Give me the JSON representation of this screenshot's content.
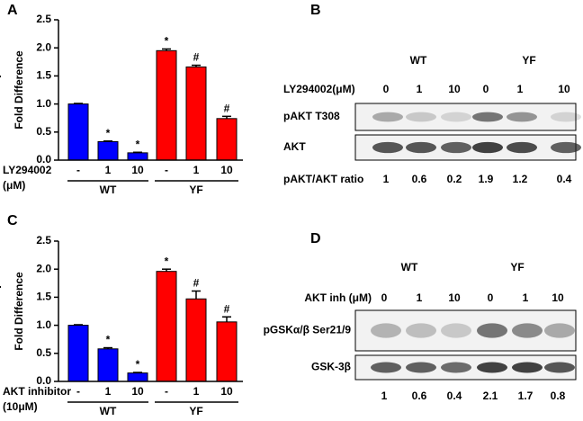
{
  "panel_labels": [
    "A",
    "B",
    "C",
    "D"
  ],
  "chart_data": [
    {
      "type": "bar",
      "y_label": "Fold Difference",
      "categories": [
        "-",
        "1",
        "10",
        "-",
        "1",
        "10"
      ],
      "values": [
        1.0,
        0.33,
        0.13,
        1.95,
        1.66,
        0.74
      ],
      "errors": [
        0.01,
        0.01,
        0.01,
        0.03,
        0.03,
        0.04
      ],
      "colors": [
        "#0000ff",
        "#0000ff",
        "#0000ff",
        "#ff0000",
        "#ff0000",
        "#ff0000"
      ],
      "annotations": [
        null,
        "*",
        "*",
        "*",
        "#",
        "#"
      ],
      "groups": [
        "WT",
        "YF"
      ],
      "treatment_label": [
        "LY294002",
        "(μM)"
      ],
      "ylim": [
        0,
        2.5
      ],
      "yticks": [
        {
          "value": 0,
          "label": "0.0"
        },
        {
          "value": 0.5,
          "label": "0.5"
        },
        {
          "value": 1,
          "label": "1.0"
        },
        {
          "value": 1.5,
          "label": "1.5"
        },
        {
          "value": 2,
          "label": "2.0"
        },
        {
          "value": 2.5,
          "label": "2.5"
        }
      ]
    },
    {
      "type": "bar",
      "y_label": "Fold Difference",
      "categories": [
        "-",
        "1",
        "10",
        "-",
        "1",
        "10"
      ],
      "values": [
        1.0,
        0.58,
        0.15,
        1.96,
        1.47,
        1.06
      ],
      "errors": [
        0.01,
        0.02,
        0.01,
        0.04,
        0.14,
        0.09
      ],
      "colors": [
        "#0000ff",
        "#0000ff",
        "#0000ff",
        "#ff0000",
        "#ff0000",
        "#ff0000"
      ],
      "annotations": [
        null,
        "*",
        "*",
        "*",
        "#",
        "#"
      ],
      "groups": [
        "WT",
        "YF"
      ],
      "treatment_label": [
        "AKT inhibitor",
        "(10μM)"
      ],
      "ylim": [
        0,
        2.5
      ],
      "yticks": [
        {
          "value": 0,
          "label": "0.0"
        },
        {
          "value": 0.5,
          "label": "0.5"
        },
        {
          "value": 1,
          "label": "1.0"
        },
        {
          "value": 1.5,
          "label": "1.5"
        },
        {
          "value": 2,
          "label": "2.0"
        },
        {
          "value": 2.5,
          "label": "2.5"
        }
      ]
    }
  ],
  "blots": [
    {
      "groups": [
        "WT",
        "YF"
      ],
      "treatment_label": "LY294002(μM)",
      "lanes": [
        "0",
        "1",
        "10",
        "0",
        "1",
        "10"
      ],
      "rows": [
        "pAKT T308",
        "AKT"
      ],
      "ratio_label": "pAKT/AKT ratio",
      "ratios": [
        1,
        0.6,
        0.2,
        1.9,
        1.2,
        0.4
      ]
    },
    {
      "groups": [
        "WT",
        "YF"
      ],
      "treatment_label": "AKT inh (μM)",
      "lanes": [
        "0",
        "1",
        "10",
        "0",
        "1",
        "10"
      ],
      "rows": [
        "pGSKα/β Ser21/9",
        "GSK-3β"
      ],
      "ratios": [
        1,
        0.6,
        0.4,
        2.1,
        1.7,
        0.8
      ]
    }
  ]
}
